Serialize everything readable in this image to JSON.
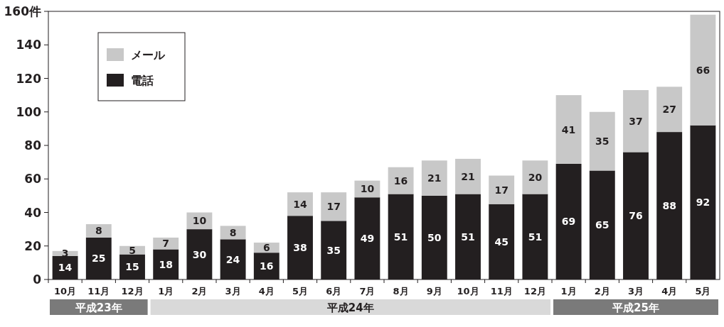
{
  "chart_data": {
    "type": "bar",
    "stacked": true,
    "data_labels": true,
    "legend": "top left",
    "grid": false,
    "categories": [
      "10月",
      "11月",
      "12月",
      "1月",
      "2月",
      "3月",
      "4月",
      "5月",
      "6月",
      "7月",
      "8月",
      "9月",
      "10月",
      "11月",
      "12月",
      "1月",
      "2月",
      "3月",
      "4月",
      "5月"
    ],
    "series": [
      {
        "name": "電話",
        "color": "#231f20",
        "values": [
          14,
          25,
          15,
          18,
          30,
          24,
          16,
          38,
          35,
          49,
          51,
          50,
          51,
          45,
          51,
          69,
          65,
          76,
          88,
          92
        ]
      },
      {
        "name": "メール",
        "color": "#c8c8c8",
        "values": [
          3,
          8,
          5,
          7,
          10,
          8,
          6,
          14,
          17,
          10,
          16,
          21,
          21,
          17,
          20,
          41,
          35,
          37,
          27,
          66
        ]
      }
    ],
    "ylim": [
      0,
      160
    ],
    "yticks": [
      0,
      20,
      40,
      60,
      80,
      100,
      120,
      140,
      {
        "value": 160,
        "label": "160件"
      }
    ],
    "annotations": [
      "平成23年",
      "平成24年",
      "平成25年"
    ]
  }
}
